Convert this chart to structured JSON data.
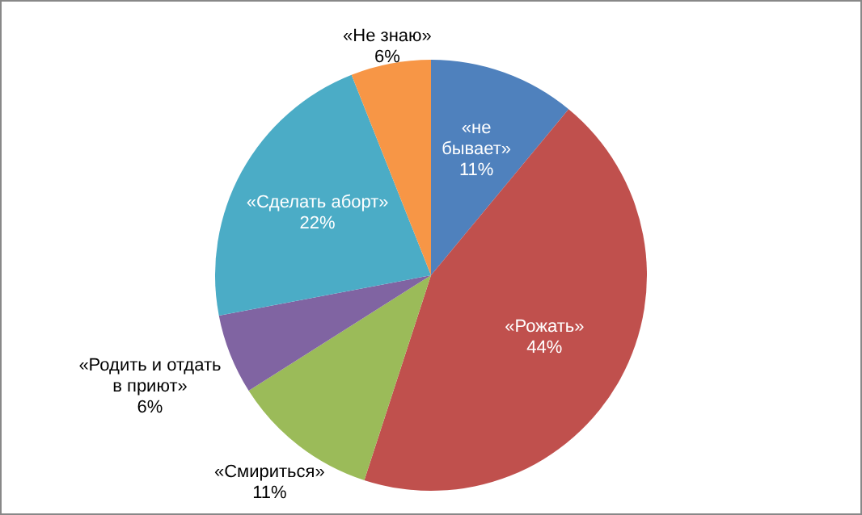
{
  "chart_data": {
    "type": "pie",
    "categories": [
      "«не бывает»",
      "«Рожать»",
      "«Смириться»",
      "«Родить и отдать в приют»",
      "«Сделать аборт»",
      "«Не знаю»"
    ],
    "values": [
      11,
      44,
      11,
      6,
      22,
      6
    ],
    "value_labels": [
      "11%",
      "44%",
      "11%",
      "6%",
      "22%",
      "6%"
    ],
    "colors": [
      "#4f81bd",
      "#c0504d",
      "#9bbb59",
      "#8064a2",
      "#4bacc6",
      "#f79646"
    ],
    "legend": false
  }
}
